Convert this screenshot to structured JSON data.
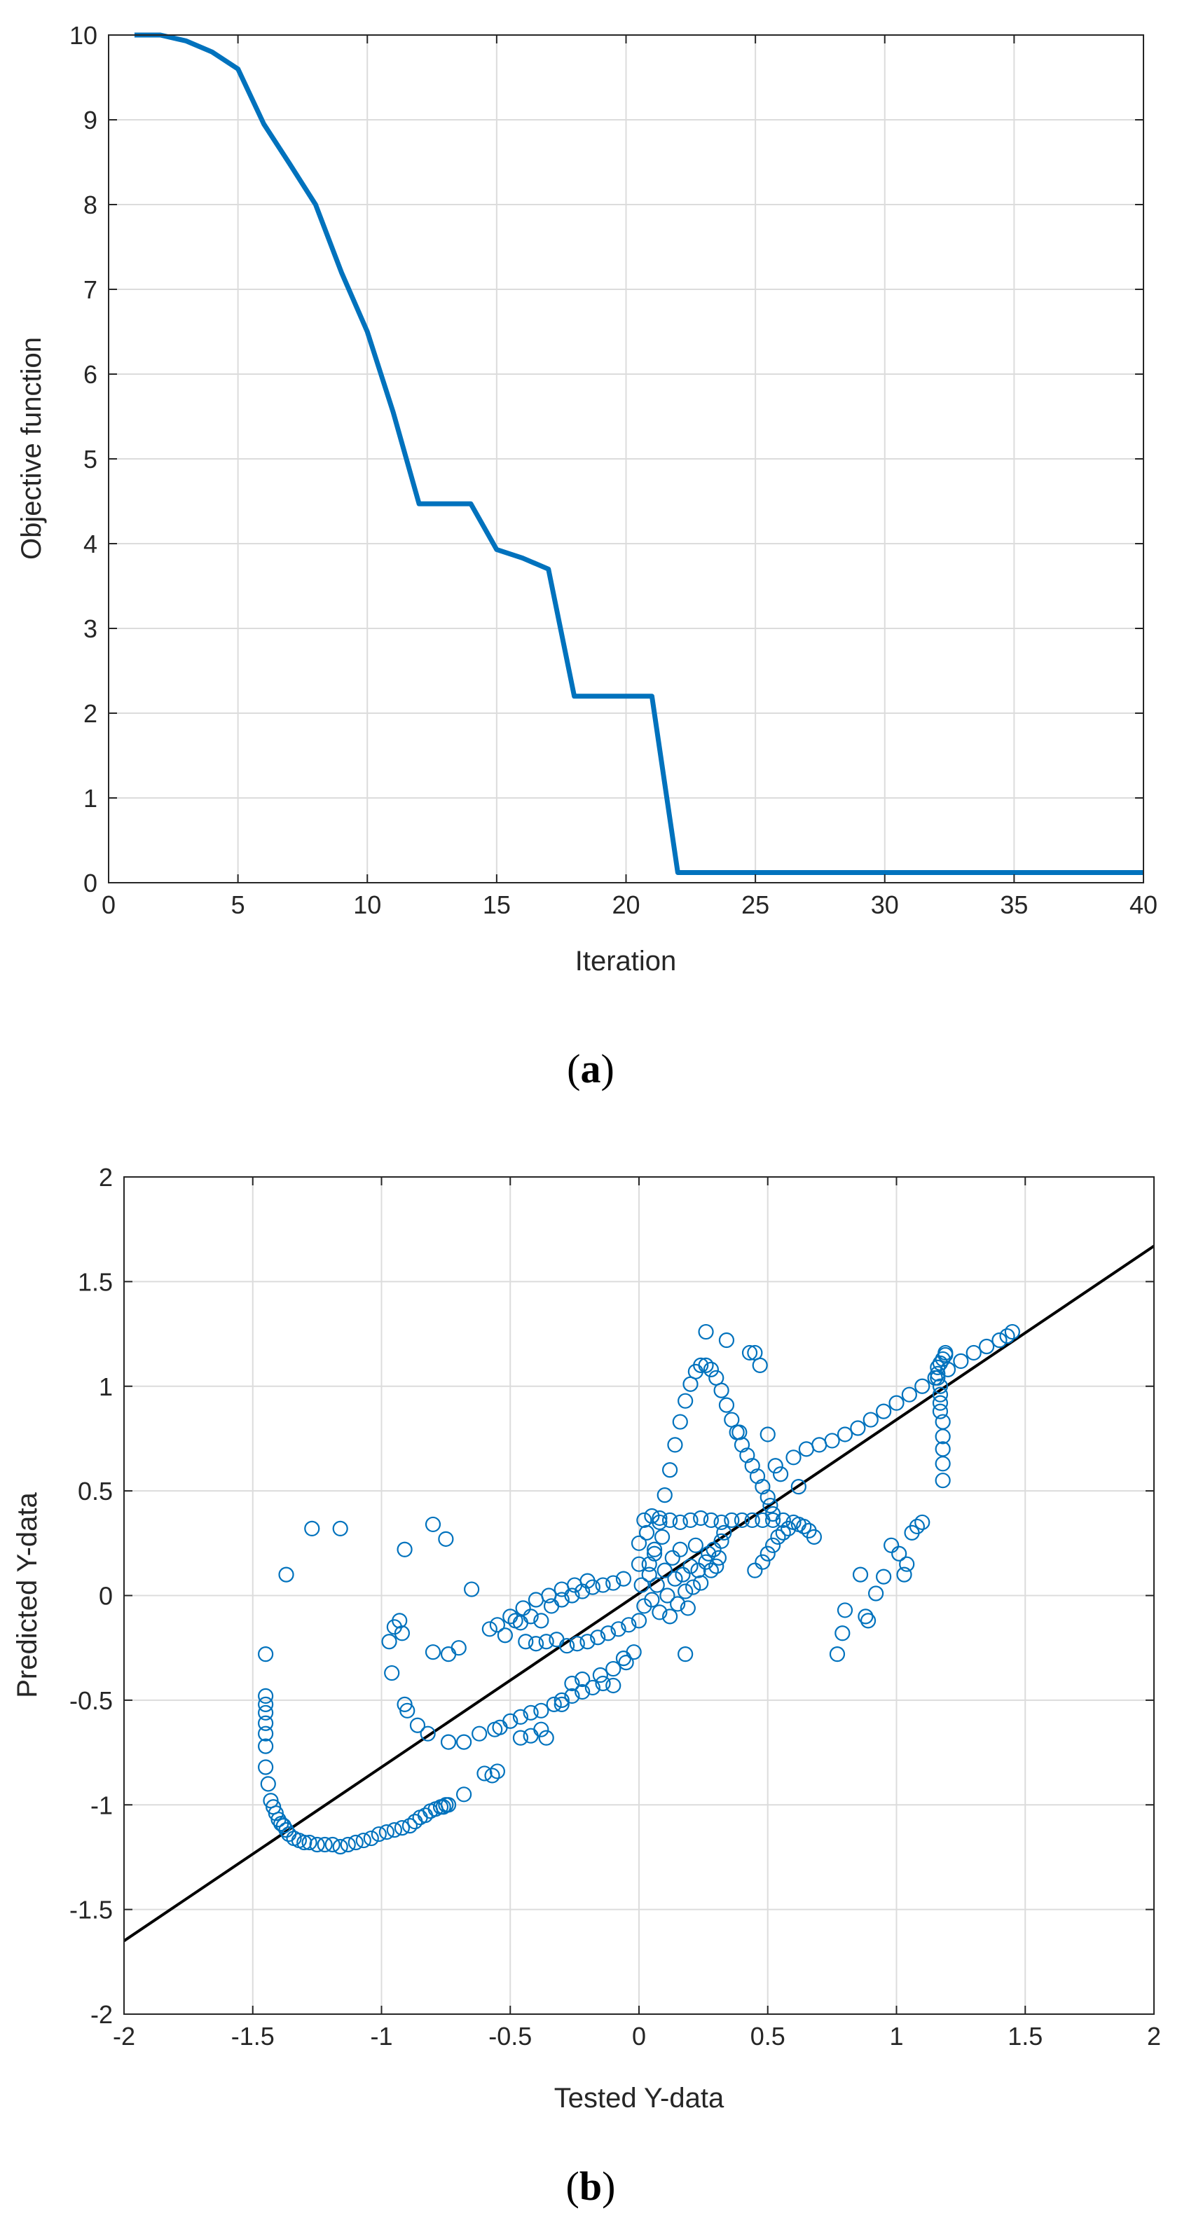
{
  "colors": {
    "series": "#0072BD",
    "fit_line": "#000000",
    "axis": "#262626",
    "grid": "#dcdcdc"
  },
  "chart_data": [
    {
      "type": "line",
      "caption_label": "a",
      "xlabel": "Iteration",
      "ylabel": "Objective function",
      "xlim": [
        0,
        40
      ],
      "ylim": [
        0,
        10
      ],
      "xticks": [
        0,
        5,
        10,
        15,
        20,
        25,
        30,
        35,
        40
      ],
      "yticks": [
        0,
        1,
        2,
        3,
        4,
        5,
        6,
        7,
        8,
        9,
        10
      ],
      "grid": true,
      "series": [
        {
          "name": "objective",
          "x": [
            1,
            2,
            3,
            4,
            5,
            6,
            7,
            8,
            9,
            10,
            11,
            12,
            13,
            14,
            15,
            16,
            17,
            18,
            19,
            20,
            21,
            22,
            23,
            24,
            25,
            26,
            27,
            28,
            29,
            30,
            31,
            32,
            33,
            34,
            35,
            36,
            37,
            38,
            39,
            40
          ],
          "y": [
            10.0,
            10.0,
            9.93,
            9.8,
            9.6,
            8.95,
            8.48,
            8.0,
            7.2,
            6.5,
            5.55,
            4.47,
            4.47,
            4.47,
            3.93,
            3.83,
            3.7,
            2.2,
            2.2,
            2.2,
            2.2,
            0.12,
            0.12,
            0.12,
            0.12,
            0.12,
            0.12,
            0.12,
            0.12,
            0.12,
            0.12,
            0.12,
            0.12,
            0.12,
            0.12,
            0.12,
            0.12,
            0.12,
            0.12,
            0.12
          ]
        }
      ]
    },
    {
      "type": "scatter",
      "caption_label": "b",
      "xlabel": "Tested Y-data",
      "ylabel": "Predicted Y-data",
      "xlim": [
        -2,
        2
      ],
      "ylim": [
        -2,
        2
      ],
      "xticks": [
        -2,
        -1.5,
        -1,
        -0.5,
        0,
        0.5,
        1,
        1.5,
        2
      ],
      "yticks": [
        -2,
        -1.5,
        -1,
        -0.5,
        0,
        0.5,
        1,
        1.5,
        2
      ],
      "grid": true,
      "fit_line": {
        "x": [
          -2,
          2
        ],
        "y": [
          -1.65,
          1.67
        ]
      },
      "loops": [
        {
          "name": "left-curve",
          "x": [
            -1.45,
            -1.45,
            -1.45,
            -1.45,
            -1.45,
            -1.45,
            -1.45,
            -1.44,
            -1.43,
            -1.42,
            -1.41,
            -1.4,
            -1.39,
            -1.38,
            -1.37,
            -1.36,
            -1.34,
            -1.32,
            -1.3,
            -1.28,
            -1.25,
            -1.22,
            -1.19,
            -1.16,
            -1.13,
            -1.1,
            -1.07,
            -1.04,
            -1.01,
            -0.98,
            -0.95,
            -0.92,
            -0.89,
            -0.87,
            -0.85,
            -0.83,
            -0.81,
            -0.79,
            -0.77,
            -0.76,
            -0.75,
            -0.74
          ],
          "y": [
            -0.48,
            -0.52,
            -0.56,
            -0.61,
            -0.66,
            -0.72,
            -0.82,
            -0.9,
            -0.98,
            -1.01,
            -1.04,
            -1.07,
            -1.09,
            -1.1,
            -1.12,
            -1.14,
            -1.16,
            -1.17,
            -1.18,
            -1.18,
            -1.19,
            -1.19,
            -1.19,
            -1.2,
            -1.19,
            -1.18,
            -1.17,
            -1.16,
            -1.14,
            -1.13,
            -1.12,
            -1.11,
            -1.1,
            -1.08,
            -1.06,
            -1.05,
            -1.03,
            -1.02,
            -1.01,
            -1.01,
            -1.0,
            -1.0
          ]
        },
        {
          "name": "upper-lobe",
          "x": [
            0.04,
            0.06,
            0.08,
            0.1,
            0.12,
            0.14,
            0.16,
            0.18,
            0.2,
            0.22,
            0.24,
            0.26,
            0.28,
            0.3,
            0.32,
            0.34,
            0.36,
            0.38,
            0.4,
            0.42,
            0.44,
            0.46,
            0.48,
            0.5,
            0.51,
            0.52
          ],
          "y": [
            0.15,
            0.22,
            0.35,
            0.48,
            0.6,
            0.72,
            0.83,
            0.93,
            1.01,
            1.07,
            1.1,
            1.1,
            1.08,
            1.04,
            0.98,
            0.91,
            0.84,
            0.78,
            0.72,
            0.67,
            0.62,
            0.57,
            0.52,
            0.47,
            0.43,
            0.39
          ]
        },
        {
          "name": "right-curve",
          "x": [
            0.55,
            0.6,
            0.65,
            0.7,
            0.75,
            0.8,
            0.85,
            0.9,
            0.95,
            1.0,
            1.05,
            1.1,
            1.15,
            1.2,
            1.25,
            1.3,
            1.35,
            1.4,
            1.43,
            1.45
          ],
          "y": [
            0.58,
            0.66,
            0.7,
            0.72,
            0.74,
            0.77,
            0.8,
            0.84,
            0.88,
            0.92,
            0.96,
            1.0,
            1.04,
            1.08,
            1.12,
            1.16,
            1.19,
            1.22,
            1.24,
            1.26
          ]
        },
        {
          "name": "vertical-1.2",
          "x": [
            1.18,
            1.18,
            1.18,
            1.18,
            1.18,
            1.17,
            1.17,
            1.17,
            1.17,
            1.16,
            1.16,
            1.16,
            1.17,
            1.18,
            1.19,
            1.19
          ],
          "y": [
            0.55,
            0.63,
            0.7,
            0.76,
            0.83,
            0.88,
            0.92,
            0.96,
            1.0,
            1.04,
            1.06,
            1.09,
            1.11,
            1.13,
            1.15,
            1.16
          ]
        }
      ],
      "points": [
        {
          "x": -1.45,
          "y": -0.28
        },
        {
          "x": -1.37,
          "y": 0.1
        },
        {
          "x": -1.27,
          "y": 0.32
        },
        {
          "x": -1.16,
          "y": 0.32
        },
        {
          "x": -0.91,
          "y": 0.22
        },
        {
          "x": -0.8,
          "y": 0.34
        },
        {
          "x": -0.75,
          "y": 0.27
        },
        {
          "x": -0.65,
          "y": 0.03
        },
        {
          "x": -0.97,
          "y": -0.22
        },
        {
          "x": -0.95,
          "y": -0.15
        },
        {
          "x": -0.93,
          "y": -0.12
        },
        {
          "x": -0.92,
          "y": -0.18
        },
        {
          "x": -0.96,
          "y": -0.37
        },
        {
          "x": -0.91,
          "y": -0.52
        },
        {
          "x": -0.9,
          "y": -0.55
        },
        {
          "x": -0.86,
          "y": -0.62
        },
        {
          "x": -0.8,
          "y": -0.27
        },
        {
          "x": -0.74,
          "y": -0.28
        },
        {
          "x": -0.7,
          "y": -0.25
        },
        {
          "x": -0.82,
          "y": -0.66
        },
        {
          "x": -0.74,
          "y": -0.7
        },
        {
          "x": -0.68,
          "y": -0.7
        },
        {
          "x": -0.62,
          "y": -0.66
        },
        {
          "x": -0.56,
          "y": -0.64
        },
        {
          "x": -0.54,
          "y": -0.63
        },
        {
          "x": -0.5,
          "y": -0.6
        },
        {
          "x": -0.46,
          "y": -0.58
        },
        {
          "x": -0.42,
          "y": -0.56
        },
        {
          "x": -0.38,
          "y": -0.55
        },
        {
          "x": -0.33,
          "y": -0.52
        },
        {
          "x": -0.3,
          "y": -0.5
        },
        {
          "x": -0.26,
          "y": -0.48
        },
        {
          "x": -0.22,
          "y": -0.46
        },
        {
          "x": -0.18,
          "y": -0.44
        },
        {
          "x": -0.14,
          "y": -0.42
        },
        {
          "x": -0.1,
          "y": -0.43
        },
        {
          "x": -0.6,
          "y": -0.85
        },
        {
          "x": -0.57,
          "y": -0.86
        },
        {
          "x": -0.55,
          "y": -0.84
        },
        {
          "x": -0.68,
          "y": -0.95
        },
        {
          "x": -0.38,
          "y": -0.64
        },
        {
          "x": -0.36,
          "y": -0.68
        },
        {
          "x": -0.46,
          "y": -0.68
        },
        {
          "x": -0.42,
          "y": -0.67
        },
        {
          "x": -0.3,
          "y": -0.52
        },
        {
          "x": -0.26,
          "y": -0.42
        },
        {
          "x": -0.22,
          "y": -0.4
        },
        {
          "x": -0.05,
          "y": -0.32
        },
        {
          "x": -0.15,
          "y": -0.38
        },
        {
          "x": -0.1,
          "y": -0.35
        },
        {
          "x": -0.06,
          "y": -0.3
        },
        {
          "x": -0.02,
          "y": -0.27
        },
        {
          "x": -0.58,
          "y": -0.16
        },
        {
          "x": -0.55,
          "y": -0.14
        },
        {
          "x": -0.52,
          "y": -0.19
        },
        {
          "x": -0.48,
          "y": -0.12
        },
        {
          "x": -0.44,
          "y": -0.22
        },
        {
          "x": -0.4,
          "y": -0.23
        },
        {
          "x": -0.36,
          "y": -0.22
        },
        {
          "x": -0.32,
          "y": -0.21
        },
        {
          "x": -0.28,
          "y": -0.24
        },
        {
          "x": -0.24,
          "y": -0.23
        },
        {
          "x": -0.2,
          "y": -0.22
        },
        {
          "x": -0.16,
          "y": -0.2
        },
        {
          "x": -0.12,
          "y": -0.18
        },
        {
          "x": -0.08,
          "y": -0.16
        },
        {
          "x": -0.04,
          "y": -0.14
        },
        {
          "x": 0.0,
          "y": -0.12
        },
        {
          "x": -0.5,
          "y": -0.1
        },
        {
          "x": -0.46,
          "y": -0.13
        },
        {
          "x": -0.42,
          "y": -0.1
        },
        {
          "x": -0.38,
          "y": -0.12
        },
        {
          "x": -0.34,
          "y": -0.05
        },
        {
          "x": -0.3,
          "y": -0.02
        },
        {
          "x": -0.26,
          "y": 0.0
        },
        {
          "x": -0.22,
          "y": 0.02
        },
        {
          "x": -0.18,
          "y": 0.04
        },
        {
          "x": -0.14,
          "y": 0.05
        },
        {
          "x": -0.1,
          "y": 0.06
        },
        {
          "x": -0.06,
          "y": 0.08
        },
        {
          "x": -0.45,
          "y": -0.06
        },
        {
          "x": -0.4,
          "y": -0.02
        },
        {
          "x": -0.35,
          "y": 0.0
        },
        {
          "x": -0.3,
          "y": 0.03
        },
        {
          "x": -0.25,
          "y": 0.05
        },
        {
          "x": -0.2,
          "y": 0.07
        },
        {
          "x": 0.0,
          "y": 0.25
        },
        {
          "x": 0.0,
          "y": 0.15
        },
        {
          "x": 0.01,
          "y": 0.05
        },
        {
          "x": 0.02,
          "y": -0.05
        },
        {
          "x": 0.03,
          "y": 0.3
        },
        {
          "x": 0.04,
          "y": 0.1
        },
        {
          "x": 0.05,
          "y": -0.02
        },
        {
          "x": 0.06,
          "y": 0.2
        },
        {
          "x": 0.07,
          "y": 0.05
        },
        {
          "x": 0.08,
          "y": -0.08
        },
        {
          "x": 0.09,
          "y": 0.28
        },
        {
          "x": 0.1,
          "y": 0.12
        },
        {
          "x": 0.11,
          "y": 0.0
        },
        {
          "x": 0.12,
          "y": -0.1
        },
        {
          "x": 0.13,
          "y": 0.18
        },
        {
          "x": 0.14,
          "y": 0.08
        },
        {
          "x": 0.15,
          "y": -0.04
        },
        {
          "x": 0.16,
          "y": 0.22
        },
        {
          "x": 0.17,
          "y": 0.1
        },
        {
          "x": 0.18,
          "y": 0.02
        },
        {
          "x": 0.19,
          "y": -0.06
        },
        {
          "x": 0.2,
          "y": 0.14
        },
        {
          "x": 0.21,
          "y": 0.04
        },
        {
          "x": 0.22,
          "y": 0.24
        },
        {
          "x": 0.23,
          "y": 0.12
        },
        {
          "x": 0.24,
          "y": 0.06
        },
        {
          "x": 0.26,
          "y": 0.16
        },
        {
          "x": 0.27,
          "y": 0.2
        },
        {
          "x": 0.28,
          "y": 0.12
        },
        {
          "x": 0.29,
          "y": 0.22
        },
        {
          "x": 0.3,
          "y": 0.14
        },
        {
          "x": 0.31,
          "y": 0.18
        },
        {
          "x": 0.32,
          "y": 0.26
        },
        {
          "x": 0.33,
          "y": 0.3
        },
        {
          "x": 0.02,
          "y": 0.36
        },
        {
          "x": 0.05,
          "y": 0.38
        },
        {
          "x": 0.08,
          "y": 0.37
        },
        {
          "x": 0.12,
          "y": 0.36
        },
        {
          "x": 0.16,
          "y": 0.35
        },
        {
          "x": 0.2,
          "y": 0.36
        },
        {
          "x": 0.24,
          "y": 0.37
        },
        {
          "x": 0.28,
          "y": 0.36
        },
        {
          "x": 0.32,
          "y": 0.35
        },
        {
          "x": 0.36,
          "y": 0.36
        },
        {
          "x": 0.4,
          "y": 0.36
        },
        {
          "x": 0.44,
          "y": 0.36
        },
        {
          "x": 0.48,
          "y": 0.36
        },
        {
          "x": 0.52,
          "y": 0.36
        },
        {
          "x": 0.56,
          "y": 0.36
        },
        {
          "x": 0.6,
          "y": 0.35
        },
        {
          "x": 0.62,
          "y": 0.34
        },
        {
          "x": 0.64,
          "y": 0.33
        },
        {
          "x": 0.66,
          "y": 0.31
        },
        {
          "x": 0.68,
          "y": 0.28
        },
        {
          "x": 0.45,
          "y": 0.12
        },
        {
          "x": 0.48,
          "y": 0.16
        },
        {
          "x": 0.5,
          "y": 0.2
        },
        {
          "x": 0.52,
          "y": 0.24
        },
        {
          "x": 0.54,
          "y": 0.28
        },
        {
          "x": 0.56,
          "y": 0.3
        },
        {
          "x": 0.58,
          "y": 0.32
        },
        {
          "x": 0.18,
          "y": -0.28
        },
        {
          "x": 0.26,
          "y": 1.26
        },
        {
          "x": 0.34,
          "y": 1.22
        },
        {
          "x": 0.43,
          "y": 1.16
        },
        {
          "x": 0.45,
          "y": 1.16
        },
        {
          "x": 0.47,
          "y": 1.1
        },
        {
          "x": 0.39,
          "y": 0.78
        },
        {
          "x": 0.5,
          "y": 0.77
        },
        {
          "x": 0.53,
          "y": 0.62
        },
        {
          "x": 0.62,
          "y": 0.52
        },
        {
          "x": 0.77,
          "y": -0.28
        },
        {
          "x": 0.79,
          "y": -0.18
        },
        {
          "x": 0.8,
          "y": -0.07
        },
        {
          "x": 0.86,
          "y": 0.1
        },
        {
          "x": 0.88,
          "y": -0.1
        },
        {
          "x": 0.89,
          "y": -0.12
        },
        {
          "x": 0.92,
          "y": 0.01
        },
        {
          "x": 0.95,
          "y": 0.09
        },
        {
          "x": 0.98,
          "y": 0.24
        },
        {
          "x": 1.01,
          "y": 0.2
        },
        {
          "x": 1.03,
          "y": 0.1
        },
        {
          "x": 1.04,
          "y": 0.15
        },
        {
          "x": 1.06,
          "y": 0.3
        },
        {
          "x": 1.08,
          "y": 0.33
        },
        {
          "x": 1.1,
          "y": 0.35
        }
      ]
    }
  ]
}
